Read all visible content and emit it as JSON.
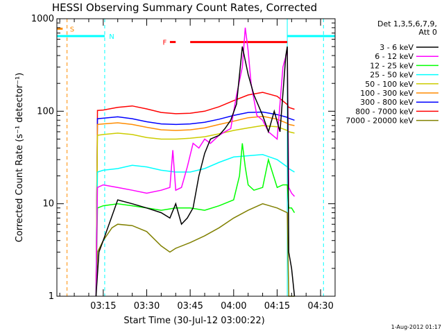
{
  "chart_data": {
    "type": "line",
    "title": "HESSI Observing Summary Count Rates, Corrected",
    "xlabel": "Start Time (30-Jul-12 03:00:22)",
    "ylabel": "Corrected Count Rate (s⁻¹ detector⁻¹)",
    "yscale": "log",
    "ylim": [
      1,
      1000
    ],
    "xlim_minutes": [
      0,
      95
    ],
    "x_tick_labels": [
      "03:15",
      "03:30",
      "03:45",
      "04:00",
      "04:15",
      "04:30"
    ],
    "y_tick_labels": [
      "1",
      "10",
      "100",
      "1000"
    ],
    "legend_header": [
      "Det 1,3,5,6,7,9,",
      "Att 0"
    ],
    "legend_placement": "top-right, outside plot",
    "timestamp": "1-Aug-2012 01:17",
    "x_unit": "minutes after 03:00",
    "series": [
      {
        "name": "3 - 6 keV",
        "color": "#000000",
        "x": [
          12.5,
          13.5,
          15,
          20,
          25,
          30,
          35,
          38,
          40,
          42,
          44,
          46,
          48,
          50,
          52,
          55,
          57,
          59,
          61,
          63,
          65,
          67,
          70,
          72,
          74,
          76,
          78,
          78.5,
          79,
          80,
          81
        ],
        "y": [
          1,
          3,
          4,
          11,
          10,
          9,
          8,
          7,
          10,
          6,
          7,
          9,
          20,
          35,
          50,
          55,
          65,
          80,
          120,
          500,
          250,
          150,
          90,
          60,
          100,
          60,
          400,
          500,
          3,
          2,
          1
        ]
      },
      {
        "name": "6 - 12 keV",
        "color": "#ff00ff",
        "x": [
          12.5,
          13,
          15,
          20,
          25,
          30,
          35,
          38,
          39,
          40,
          42,
          44,
          46,
          48,
          50,
          52,
          55,
          57,
          59,
          61,
          63,
          64,
          65,
          66,
          68,
          70,
          72,
          75,
          77,
          78.5,
          79,
          80,
          81
        ],
        "y": [
          1,
          15,
          16,
          15,
          14,
          13,
          14,
          15,
          38,
          14,
          15,
          25,
          45,
          40,
          50,
          45,
          55,
          60,
          65,
          150,
          300,
          800,
          450,
          200,
          90,
          80,
          60,
          50,
          300,
          450,
          15,
          13,
          12
        ]
      },
      {
        "name": "12 - 25 keV",
        "color": "#00ff00",
        "x": [
          12.5,
          13,
          15,
          20,
          25,
          30,
          35,
          40,
          45,
          50,
          55,
          60,
          62,
          63,
          64,
          65,
          67,
          70,
          72,
          75,
          77,
          78.5,
          79,
          80,
          81
        ],
        "y": [
          1,
          9,
          9.5,
          10,
          9.5,
          9,
          8.5,
          9,
          9,
          8.5,
          9.5,
          11,
          20,
          45,
          25,
          16,
          14,
          15,
          30,
          15,
          16,
          16,
          9,
          9,
          8
        ]
      },
      {
        "name": "25 - 50 keV",
        "color": "#00ffff",
        "x": [
          12.5,
          13,
          15,
          20,
          25,
          30,
          35,
          40,
          45,
          50,
          55,
          60,
          65,
          70,
          75,
          78.5,
          79,
          81
        ],
        "y": [
          1,
          22,
          23,
          24,
          26,
          25,
          23,
          22,
          22,
          24,
          28,
          32,
          33,
          34,
          30,
          25,
          24,
          22
        ]
      },
      {
        "name": "50 - 100 keV",
        "color": "#cccc00",
        "x": [
          12.5,
          13,
          15,
          20,
          25,
          30,
          35,
          40,
          45,
          50,
          55,
          60,
          65,
          70,
          75,
          78.5,
          79,
          81
        ],
        "y": [
          1,
          55,
          56,
          58,
          56,
          52,
          50,
          50,
          51,
          53,
          57,
          62,
          66,
          70,
          68,
          62,
          60,
          58
        ]
      },
      {
        "name": "100 - 300 keV",
        "color": "#ff8c00",
        "x": [
          12.5,
          13,
          15,
          20,
          25,
          30,
          35,
          40,
          45,
          50,
          55,
          60,
          65,
          70,
          75,
          78.5,
          79,
          81
        ],
        "y": [
          1,
          72,
          73,
          75,
          72,
          67,
          63,
          62,
          63,
          66,
          72,
          78,
          85,
          88,
          82,
          74,
          72,
          70
        ]
      },
      {
        "name": "300 - 800 keV",
        "color": "#0000ff",
        "x": [
          12.5,
          13,
          15,
          20,
          25,
          30,
          35,
          40,
          45,
          50,
          55,
          60,
          65,
          70,
          75,
          78.5,
          79,
          81
        ],
        "y": [
          1,
          83,
          84,
          87,
          83,
          77,
          73,
          72,
          73,
          76,
          82,
          90,
          97,
          98,
          92,
          86,
          84,
          80
        ]
      },
      {
        "name": "800 - 7000 keV",
        "color": "#ff0000",
        "x": [
          12.5,
          13,
          15,
          20,
          25,
          30,
          35,
          40,
          45,
          50,
          55,
          60,
          65,
          70,
          75,
          78.5,
          79,
          81
        ],
        "y": [
          1,
          102,
          103,
          110,
          114,
          106,
          97,
          94,
          95,
          100,
          112,
          130,
          150,
          160,
          145,
          118,
          110,
          105
        ]
      },
      {
        "name": "7000 - 20000 keV",
        "color": "#808000",
        "x": [
          12.5,
          13,
          15,
          18,
          20,
          25,
          30,
          35,
          38,
          40,
          45,
          50,
          55,
          60,
          65,
          70,
          75,
          78.5,
          79,
          81
        ],
        "y": [
          1,
          3,
          4,
          5.5,
          6,
          5.8,
          5,
          3.5,
          3,
          3.3,
          3.8,
          4.5,
          5.5,
          7,
          8.5,
          10,
          9,
          8,
          1,
          1
        ]
      }
    ],
    "status_bars": [
      {
        "label": "S",
        "color": "#ff8c00",
        "x": [
          -1,
          1
        ],
        "y": 780
      },
      {
        "label": "N",
        "color": "#00ffff",
        "x": [
          -1,
          15.5
        ],
        "y": 650
      },
      {
        "label": "N",
        "color": "#00ffff",
        "x": [
          78.5,
          95
        ],
        "y": 650
      },
      {
        "label": "F",
        "color": "#ff0000",
        "x": [
          38,
          40
        ],
        "y": 560
      },
      {
        "label": "F",
        "color": "#ff0000",
        "x": [
          45,
          78.5
        ],
        "y": 560
      }
    ],
    "vertical_markers": [
      {
        "color": "#ff8c00",
        "style": "dashed",
        "x": 2.5
      },
      {
        "color": "#00ffff",
        "style": "dashed",
        "x": 15.5
      },
      {
        "color": "#00ffff",
        "style": "solid",
        "x": 78.5
      },
      {
        "color": "#00ffff",
        "style": "dashed",
        "x": 91
      }
    ],
    "marker_labels": [
      {
        "text": "S",
        "color": "#ff8c00",
        "x": 3.5,
        "y": 780
      },
      {
        "text": "N",
        "color": "#00ffff",
        "x": 17,
        "y": 650
      },
      {
        "text": "F",
        "color": "#ff0000",
        "x": 35.5,
        "y": 560
      }
    ]
  }
}
